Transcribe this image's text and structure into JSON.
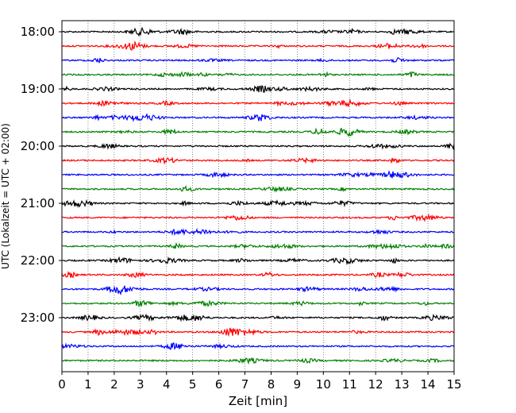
{
  "chart_data": {
    "type": "line",
    "title": "",
    "xlabel": "Zeit  [min]",
    "ylabel": "UTC (Lokalzeit = UTC + 02:00)",
    "xlim": [
      0,
      15
    ],
    "x_ticks": [
      "0",
      "1",
      "2",
      "3",
      "4",
      "5",
      "6",
      "7",
      "8",
      "9",
      "10",
      "11",
      "12",
      "13",
      "14",
      "15"
    ],
    "y_ticks": [
      "18:00",
      "19:00",
      "20:00",
      "21:00",
      "22:00",
      "23:00"
    ],
    "grid": "vertical dotted at each minute",
    "traces_per_hour": 4,
    "trace_interval_minutes": 15,
    "trace_start": "18:00",
    "trace_count": 24,
    "trace_colors": [
      "#000000",
      "#ff0000",
      "#0000ff",
      "#008000"
    ]
  }
}
